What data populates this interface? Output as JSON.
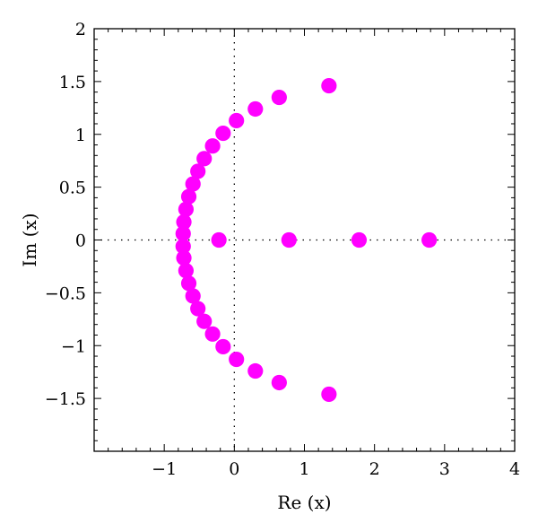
{
  "chart_data": {
    "type": "scatter",
    "xlabel": "Re (x)",
    "ylabel": "Im (x)",
    "xlim": [
      -2,
      4
    ],
    "ylim": [
      -2,
      2
    ],
    "x_ticks": [
      -1,
      0,
      1,
      2,
      3,
      4
    ],
    "x_tick_labels": [
      "−1",
      "0",
      "1",
      "2",
      "3",
      "4"
    ],
    "y_ticks": [
      -1.5,
      -1,
      -0.5,
      0,
      0.5,
      1,
      1.5,
      2
    ],
    "y_tick_labels": [
      "−1.5",
      "−1",
      "−0.5",
      "0",
      "0.5",
      "1",
      "1.5",
      "2"
    ],
    "grid": false,
    "zero_lines": "dotted",
    "marker_color": "#ff00ff",
    "series": [
      {
        "points": [
          [
            1.35,
            1.46
          ],
          [
            0.64,
            1.35
          ],
          [
            0.3,
            1.24
          ],
          [
            0.03,
            1.13
          ],
          [
            -0.16,
            1.01
          ],
          [
            -0.31,
            0.89
          ],
          [
            -0.43,
            0.77
          ],
          [
            -0.52,
            0.65
          ],
          [
            -0.59,
            0.53
          ],
          [
            -0.65,
            0.41
          ],
          [
            -0.69,
            0.29
          ],
          [
            -0.72,
            0.17
          ],
          [
            -0.73,
            0.06
          ],
          [
            -0.73,
            -0.06
          ],
          [
            -0.72,
            -0.17
          ],
          [
            -0.69,
            -0.29
          ],
          [
            -0.65,
            -0.41
          ],
          [
            -0.59,
            -0.53
          ],
          [
            -0.52,
            -0.65
          ],
          [
            -0.43,
            -0.77
          ],
          [
            -0.31,
            -0.89
          ],
          [
            -0.16,
            -1.01
          ],
          [
            0.03,
            -1.13
          ],
          [
            0.3,
            -1.24
          ],
          [
            0.64,
            -1.35
          ],
          [
            1.35,
            -1.46
          ],
          [
            -0.22,
            0
          ],
          [
            0.78,
            0
          ],
          [
            1.78,
            0
          ],
          [
            2.78,
            0
          ]
        ]
      }
    ]
  }
}
